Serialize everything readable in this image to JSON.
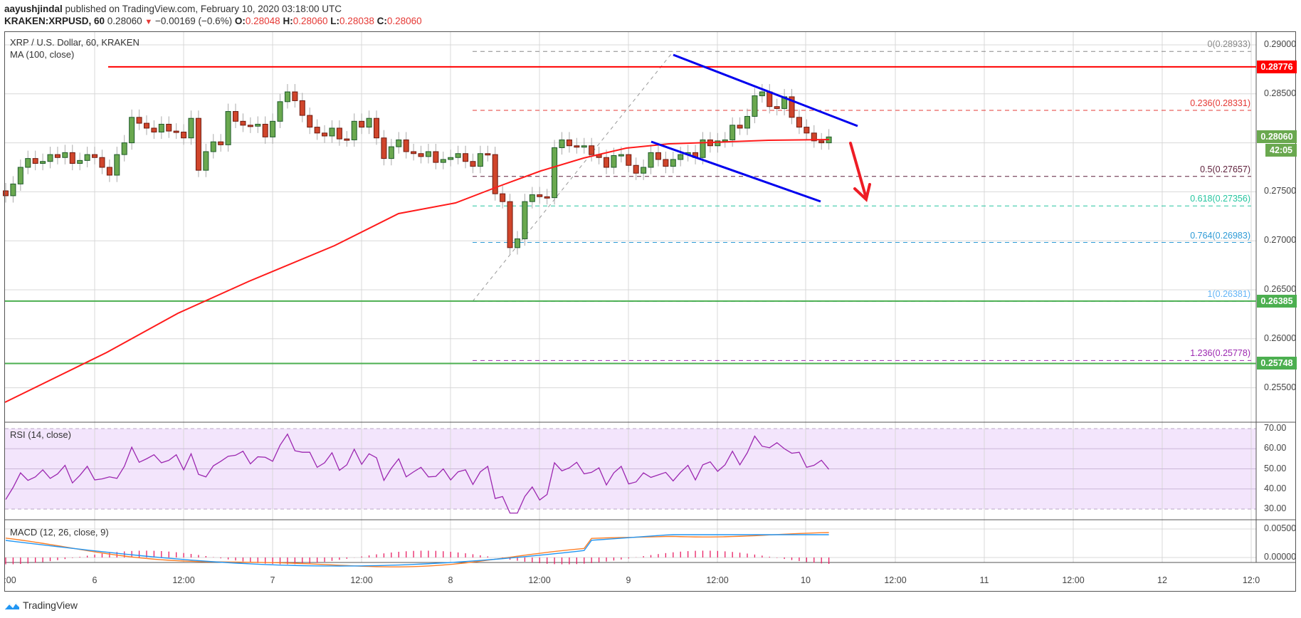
{
  "header": {
    "author": "aayushjindal",
    "published": "published on TradingView.com, February 10, 2020 03:18:00 UTC",
    "symbol": "KRAKEN:XRPUSD, 60",
    "last": "0.28060",
    "change": "−0.00169 (−0.6%)",
    "o_label": "O:",
    "o": "0.28048",
    "h_label": "H:",
    "h": "0.28060",
    "l_label": "L:",
    "l": "0.28038",
    "c_label": "C:",
    "c": "0.28060"
  },
  "main_pane": {
    "title": "XRP / U.S. Dollar, 60, KRAKEN",
    "indicator": "MA (100, close)"
  },
  "rsi_pane": {
    "title": "RSI (14, close)"
  },
  "macd_pane": {
    "title": "MACD (12, 26, close, 9)"
  },
  "price_axis": {
    "ticks": [
      "0.29000",
      "0.28500",
      "0.28000",
      "0.27500",
      "0.27000",
      "0.26500",
      "0.26000",
      "0.25500"
    ],
    "badges": [
      {
        "value": "0.28776",
        "color": "#ff0000"
      },
      {
        "value": "0.28060",
        "color": "#6aa84f"
      },
      {
        "value": "42:05",
        "color": "#6aa84f"
      },
      {
        "value": "0.26385",
        "color": "#4caf50"
      },
      {
        "value": "0.25748",
        "color": "#4caf50"
      }
    ]
  },
  "rsi_axis": {
    "ticks": [
      "70.00",
      "60.00",
      "50.00",
      "40.00",
      "30.00"
    ]
  },
  "macd_axis": {
    "ticks": [
      "0.00500",
      "0.00000"
    ]
  },
  "time_axis": {
    "ticks": [
      ":00",
      "6",
      "12:00",
      "7",
      "12:00",
      "8",
      "12:00",
      "9",
      "12:00",
      "10",
      "12:00",
      "11",
      "12:00",
      "12",
      "12:0"
    ]
  },
  "fib_levels": [
    {
      "label": "0(0.28933)",
      "level": 0,
      "price": 0.28933,
      "color": "#888888"
    },
    {
      "label": "0.236(0.28331)",
      "level": 0.236,
      "price": 0.28331,
      "color": "#e53935"
    },
    {
      "label": "0.5(0.27657)",
      "level": 0.5,
      "price": 0.27657,
      "color": "#5d1f3a"
    },
    {
      "label": "0.618(0.27356)",
      "level": 0.618,
      "price": 0.27356,
      "color": "#26c6a0"
    },
    {
      "label": "0.764(0.26983)",
      "level": 0.764,
      "price": 0.26983,
      "color": "#2e9bd6"
    },
    {
      "label": "1(0.26381)",
      "level": 1,
      "price": 0.26381,
      "color": "#64b5f6"
    },
    {
      "label": "1.236(0.25778)",
      "level": 1.236,
      "price": 0.25778,
      "color": "#9c27b0"
    }
  ],
  "logo": {
    "text": "TradingView"
  },
  "colors": {
    "up": "#6aa84f",
    "down": "#d0452b",
    "ma": "#ff1a1a",
    "resistance": "#ff0000",
    "support": "#4caf50",
    "channel": "#0000ee",
    "rsi": "#9c27b0",
    "macd": "#2196f3",
    "signal": "#ff7f27",
    "hist": "#e91e63"
  },
  "chart_data": {
    "type": "candlestick",
    "title": "XRP / U.S. Dollar, 60, KRAKEN",
    "interval": "60",
    "x_start": "Feb 5 12:00",
    "x_end": "Feb 10 03:00",
    "ylim": [
      0.2525,
      0.2915
    ],
    "horizontal_lines": [
      {
        "price": 0.28776,
        "color": "#ff0000",
        "label": "resistance"
      },
      {
        "price": 0.26385,
        "color": "#4caf50",
        "label": "support"
      },
      {
        "price": 0.25748,
        "color": "#4caf50",
        "label": "support"
      }
    ],
    "closes": [
      0.2746,
      0.2758,
      0.2775,
      0.2784,
      0.2779,
      0.2781,
      0.2788,
      0.2785,
      0.279,
      0.2779,
      0.2782,
      0.2788,
      0.2785,
      0.2775,
      0.2767,
      0.2788,
      0.28,
      0.2826,
      0.282,
      0.2815,
      0.2811,
      0.2819,
      0.2812,
      0.2811,
      0.2805,
      0.2825,
      0.2772,
      0.2791,
      0.2801,
      0.2798,
      0.2832,
      0.2822,
      0.2818,
      0.2817,
      0.2819,
      0.2806,
      0.2822,
      0.2842,
      0.2852,
      0.2843,
      0.2828,
      0.2816,
      0.281,
      0.2807,
      0.2815,
      0.2804,
      0.2803,
      0.2822,
      0.2816,
      0.2825,
      0.2805,
      0.2784,
      0.2796,
      0.2803,
      0.2791,
      0.2789,
      0.2786,
      0.2791,
      0.278,
      0.2783,
      0.2785,
      0.2789,
      0.2781,
      0.2776,
      0.2789,
      0.2788,
      0.2748,
      0.274,
      0.2693,
      0.2702,
      0.274,
      0.2747,
      0.2745,
      0.2744,
      0.2795,
      0.2803,
      0.2797,
      0.2796,
      0.2797,
      0.2788,
      0.2785,
      0.2775,
      0.2787,
      0.2788,
      0.2777,
      0.2769,
      0.2775,
      0.279,
      0.2783,
      0.2776,
      0.2783,
      0.2788,
      0.279,
      0.2785,
      0.2803,
      0.2797,
      0.2802,
      0.2803,
      0.2818,
      0.2815,
      0.2827,
      0.2848,
      0.2852,
      0.2837,
      0.2835,
      0.2847,
      0.2826,
      0.2816,
      0.281,
      0.2802,
      0.28,
      0.2806
    ],
    "ma100_start": 0.253,
    "ma100_end": 0.2798,
    "rsi_range": [
      30,
      70
    ],
    "macd_range": [
      -0.0015,
      0.006
    ]
  }
}
